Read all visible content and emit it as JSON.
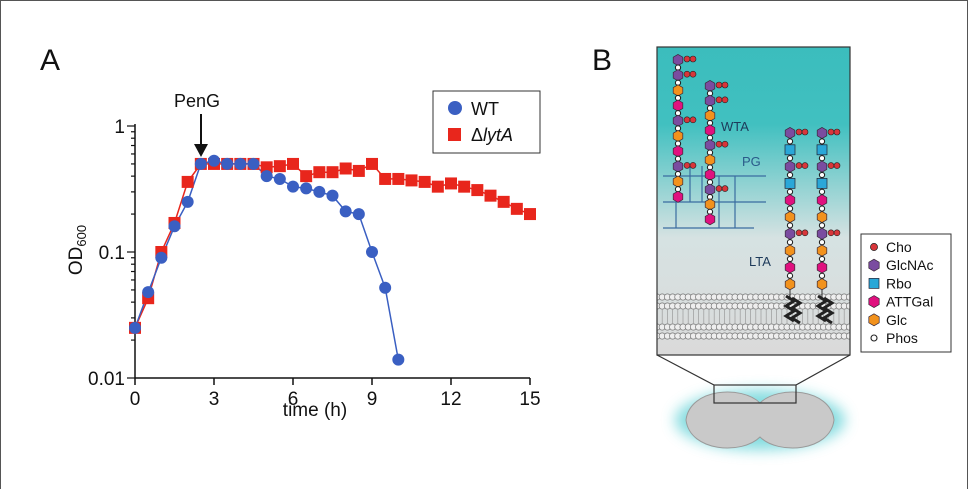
{
  "panel_a": {
    "label": "A",
    "annotation": "PenG",
    "legend": {
      "wt": "WT",
      "lyta_delta": "Δ",
      "lyta_italic": "lytA"
    },
    "ylabel_main": "OD",
    "ylabel_sub": "600",
    "xlabel": "time (h)"
  },
  "panel_b": {
    "label": "B",
    "labels": {
      "wta": "WTA",
      "pg": "PG",
      "lta": "LTA"
    },
    "legend": [
      "Cho",
      "GlcNAc",
      "Rbo",
      "ATTGal",
      "Glc",
      "Phos"
    ]
  },
  "colors": {
    "wt": "#3a5fc2",
    "lyta": "#e8261c",
    "cho": "#d8363a",
    "glcnac": "#7a4ca0",
    "rbo": "#2aa7d8",
    "attgal": "#e0117f",
    "glc": "#f2921d",
    "teal": "#3fbfbf"
  },
  "chart_data": {
    "type": "scatter",
    "xlabel": "time (h)",
    "ylabel": "OD600",
    "xlim": [
      0,
      15
    ],
    "ylim": [
      0.01,
      1
    ],
    "yscale": "log",
    "xticks": [
      0,
      3,
      6,
      9,
      12,
      15
    ],
    "xtick_labels": [
      "0",
      "3",
      "6",
      "9",
      "12",
      "15"
    ],
    "yticks": [
      0.01,
      0.1,
      1
    ],
    "ytick_labels": [
      "0.01",
      "0.1",
      "1"
    ],
    "annotation": {
      "text": "PenG",
      "x": 2.5
    },
    "legend_position": "top-right",
    "series": [
      {
        "name": "WT",
        "marker": "circle",
        "x": [
          0,
          0.5,
          1,
          1.5,
          2,
          2.5,
          3,
          3.5,
          4,
          4.5,
          5,
          5.5,
          6,
          6.5,
          7,
          7.5,
          8,
          8.5,
          9,
          9.5,
          10
        ],
        "y": [
          0.025,
          0.048,
          0.09,
          0.16,
          0.25,
          0.5,
          0.53,
          0.5,
          0.5,
          0.5,
          0.4,
          0.38,
          0.33,
          0.32,
          0.3,
          0.28,
          0.21,
          0.2,
          0.1,
          0.052,
          0.014
        ]
      },
      {
        "name": "ΔlytA",
        "marker": "square",
        "x": [
          0,
          0.5,
          1,
          1.5,
          2,
          2.5,
          3,
          3.5,
          4,
          4.5,
          5,
          5.5,
          6,
          6.5,
          7,
          7.5,
          8,
          8.5,
          9,
          9.5,
          10,
          10.5,
          11,
          11.5,
          12,
          12.5,
          13,
          13.5,
          14,
          14.5,
          15
        ],
        "y": [
          0.025,
          0.043,
          0.1,
          0.17,
          0.36,
          0.5,
          0.5,
          0.5,
          0.5,
          0.5,
          0.47,
          0.48,
          0.5,
          0.4,
          0.43,
          0.43,
          0.46,
          0.44,
          0.5,
          0.38,
          0.38,
          0.37,
          0.36,
          0.33,
          0.35,
          0.33,
          0.31,
          0.28,
          0.25,
          0.22,
          0.2
        ]
      }
    ]
  }
}
